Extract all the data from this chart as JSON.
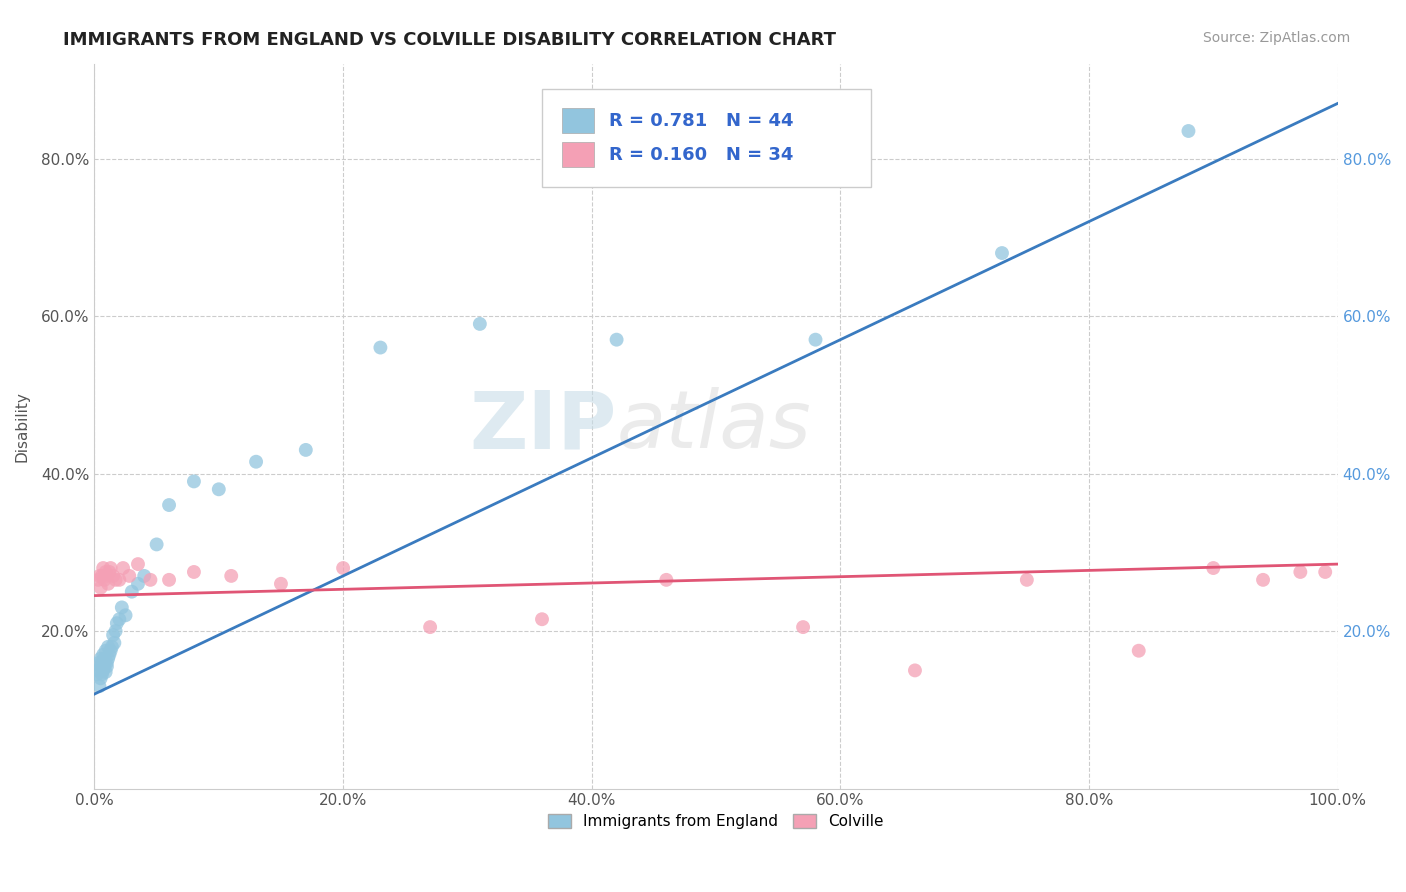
{
  "title": "IMMIGRANTS FROM ENGLAND VS COLVILLE DISABILITY CORRELATION CHART",
  "source_text": "Source: ZipAtlas.com",
  "ylabel": "Disability",
  "xlabel": "",
  "xlim": [
    0.0,
    1.0
  ],
  "ylim": [
    0.0,
    0.92
  ],
  "xtick_positions": [
    0.0,
    0.2,
    0.4,
    0.6,
    0.8,
    1.0
  ],
  "xtick_labels": [
    "0.0%",
    "20.0%",
    "40.0%",
    "60.0%",
    "80.0%",
    "100.0%"
  ],
  "ytick_positions": [
    0.2,
    0.4,
    0.6,
    0.8
  ],
  "ytick_labels": [
    "20.0%",
    "40.0%",
    "60.0%",
    "80.0%"
  ],
  "legend_labels": [
    "Immigrants from England",
    "Colville"
  ],
  "color_blue": "#92c5de",
  "color_pink": "#f4a0b5",
  "trendline_blue": "#3a7bbf",
  "trendline_pink": "#e05575",
  "background_color": "#ffffff",
  "grid_color": "#cccccc",
  "blue_points_x": [
    0.002,
    0.003,
    0.004,
    0.004,
    0.005,
    0.005,
    0.005,
    0.006,
    0.006,
    0.007,
    0.007,
    0.008,
    0.008,
    0.009,
    0.009,
    0.01,
    0.01,
    0.011,
    0.011,
    0.012,
    0.013,
    0.014,
    0.015,
    0.016,
    0.017,
    0.018,
    0.02,
    0.022,
    0.025,
    0.03,
    0.035,
    0.04,
    0.05,
    0.06,
    0.08,
    0.1,
    0.13,
    0.17,
    0.23,
    0.31,
    0.42,
    0.58,
    0.73,
    0.88
  ],
  "blue_points_y": [
    0.145,
    0.15,
    0.13,
    0.16,
    0.14,
    0.155,
    0.165,
    0.145,
    0.16,
    0.15,
    0.17,
    0.155,
    0.165,
    0.148,
    0.175,
    0.155,
    0.16,
    0.165,
    0.18,
    0.17,
    0.175,
    0.18,
    0.195,
    0.185,
    0.2,
    0.21,
    0.215,
    0.23,
    0.22,
    0.25,
    0.26,
    0.27,
    0.31,
    0.36,
    0.39,
    0.38,
    0.415,
    0.43,
    0.56,
    0.59,
    0.57,
    0.57,
    0.68,
    0.835
  ],
  "pink_points_x": [
    0.003,
    0.004,
    0.005,
    0.006,
    0.007,
    0.008,
    0.009,
    0.01,
    0.011,
    0.012,
    0.013,
    0.015,
    0.017,
    0.02,
    0.023,
    0.028,
    0.035,
    0.045,
    0.06,
    0.08,
    0.11,
    0.15,
    0.2,
    0.27,
    0.36,
    0.46,
    0.57,
    0.66,
    0.75,
    0.84,
    0.9,
    0.94,
    0.97,
    0.99
  ],
  "pink_points_y": [
    0.265,
    0.27,
    0.255,
    0.27,
    0.28,
    0.265,
    0.275,
    0.27,
    0.26,
    0.275,
    0.28,
    0.27,
    0.265,
    0.265,
    0.28,
    0.27,
    0.285,
    0.265,
    0.265,
    0.275,
    0.27,
    0.26,
    0.28,
    0.205,
    0.215,
    0.265,
    0.205,
    0.15,
    0.265,
    0.175,
    0.28,
    0.265,
    0.275,
    0.275
  ],
  "blue_trend_x0": 0.0,
  "blue_trend_y0": 0.12,
  "blue_trend_x1": 1.0,
  "blue_trend_y1": 0.87,
  "pink_trend_x0": 0.0,
  "pink_trend_y0": 0.245,
  "pink_trend_x1": 1.0,
  "pink_trend_y1": 0.285
}
